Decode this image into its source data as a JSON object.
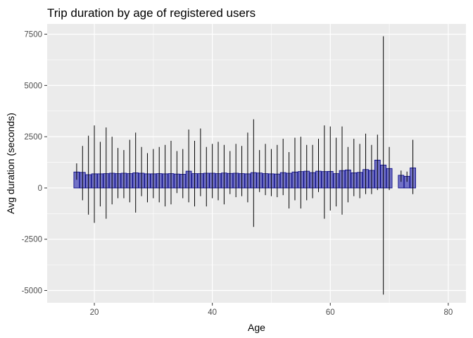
{
  "chart_data": {
    "type": "bar",
    "title": "Trip duration by age of registered users",
    "xlabel": "Age",
    "ylabel": "Avg duration (seconds)",
    "xlim": [
      12,
      83
    ],
    "ylim": [
      -5600,
      8000
    ],
    "x_ticks": [
      20,
      40,
      60,
      80
    ],
    "y_ticks": [
      -5000,
      -2500,
      0,
      2500,
      5000,
      7500
    ],
    "grid": true,
    "legend": "none",
    "bar_fill": "#7171c6",
    "bar_outline": "#000080",
    "panel_background": "#ebebeb",
    "series": [
      {
        "x": [
          17,
          18,
          19,
          20,
          21,
          22,
          23,
          24,
          25,
          26,
          27,
          28,
          29,
          30,
          31,
          32,
          33,
          34,
          35,
          36,
          37,
          38,
          39,
          40,
          41,
          42,
          43,
          44,
          45,
          46,
          47,
          48,
          49,
          50,
          51,
          52,
          53,
          54,
          55,
          56,
          57,
          58,
          59,
          60,
          61,
          62,
          63,
          64,
          65,
          66,
          67,
          68,
          69,
          70,
          72,
          73,
          74
        ],
        "values": [
          780,
          760,
          650,
          690,
          690,
          700,
          720,
          700,
          720,
          700,
          740,
          720,
          690,
          690,
          700,
          690,
          700,
          680,
          670,
          820,
          700,
          700,
          720,
          720,
          700,
          730,
          710,
          720,
          700,
          690,
          750,
          730,
          700,
          690,
          680,
          750,
          720,
          780,
          800,
          820,
          750,
          820,
          800,
          810,
          700,
          850,
          880,
          740,
          760,
          900,
          860,
          1360,
          1120,
          950,
          620,
          570,
          980
        ],
        "error_low": [
          400,
          -600,
          -1300,
          -1700,
          -900,
          -1500,
          -800,
          -500,
          -500,
          -700,
          -1200,
          -400,
          -700,
          -500,
          -700,
          -900,
          -800,
          -250,
          -500,
          -700,
          -900,
          -400,
          -900,
          -500,
          -600,
          -800,
          -300,
          -450,
          -400,
          -700,
          -1900,
          -200,
          -350,
          -400,
          -450,
          -350,
          -1000,
          -600,
          -1000,
          -600,
          -500,
          -200,
          -1500,
          -1100,
          -900,
          -1300,
          -700,
          -400,
          -500,
          -300,
          -300,
          -100,
          -5200,
          -100,
          300,
          300,
          -300
        ],
        "error_high": [
          1200,
          2050,
          2550,
          3050,
          2250,
          2950,
          2500,
          1950,
          1850,
          2350,
          2700,
          2000,
          1700,
          1900,
          2000,
          2100,
          2300,
          1800,
          1900,
          2850,
          2300,
          2900,
          2000,
          2150,
          2250,
          2100,
          1800,
          2150,
          2050,
          2700,
          3350,
          1850,
          2150,
          1900,
          2100,
          2400,
          1750,
          2450,
          2500,
          2100,
          2100,
          2400,
          3050,
          3000,
          2450,
          3000,
          2000,
          2400,
          2150,
          2650,
          2100,
          2600,
          7400,
          2000,
          850,
          800,
          2350
        ]
      }
    ]
  }
}
